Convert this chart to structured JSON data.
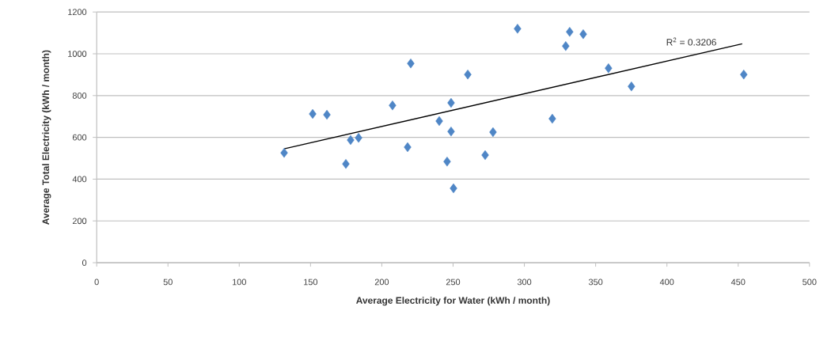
{
  "chart_data": {
    "type": "scatter",
    "xlabel": "Average Electricity for Water (kWh / month)",
    "ylabel": "Average Total Electricity (kWh / month)",
    "xlim": [
      0,
      500
    ],
    "xticks": [
      0,
      50,
      100,
      150,
      200,
      250,
      300,
      350,
      400,
      450,
      500
    ],
    "ylim": [
      0,
      1200
    ],
    "yticks": [
      0,
      200,
      400,
      600,
      800,
      1000,
      1200
    ],
    "grid": "y",
    "marker": "diamond",
    "annotations": [
      "R$^{2}$ = 0.3206"
    ],
    "series": [
      {
        "color": "#4f86c6",
        "x": [
          131.5,
          151.5,
          161.5,
          174.8,
          178.1,
          183.7,
          207.5,
          218.1,
          220.3,
          240.3,
          245.8,
          248.6,
          248.6,
          250.3,
          260.3,
          272.5,
          278,
          295.2,
          319.6,
          329,
          331.8,
          341.3,
          359,
          375.1,
          453.9
        ],
        "values": [
          526,
          712,
          708,
          473,
          587,
          598,
          753,
          553,
          954,
          678,
          484,
          765,
          628,
          356,
          901,
          515,
          625,
          1120,
          689,
          1037,
          1105,
          1094,
          931,
          844,
          901
        ]
      },
      {
        "type": "line",
        "marker": "none",
        "color": "#000000",
        "x": [
          131.5,
          452.8
        ],
        "values": [
          545,
          1048
        ]
      }
    ]
  }
}
